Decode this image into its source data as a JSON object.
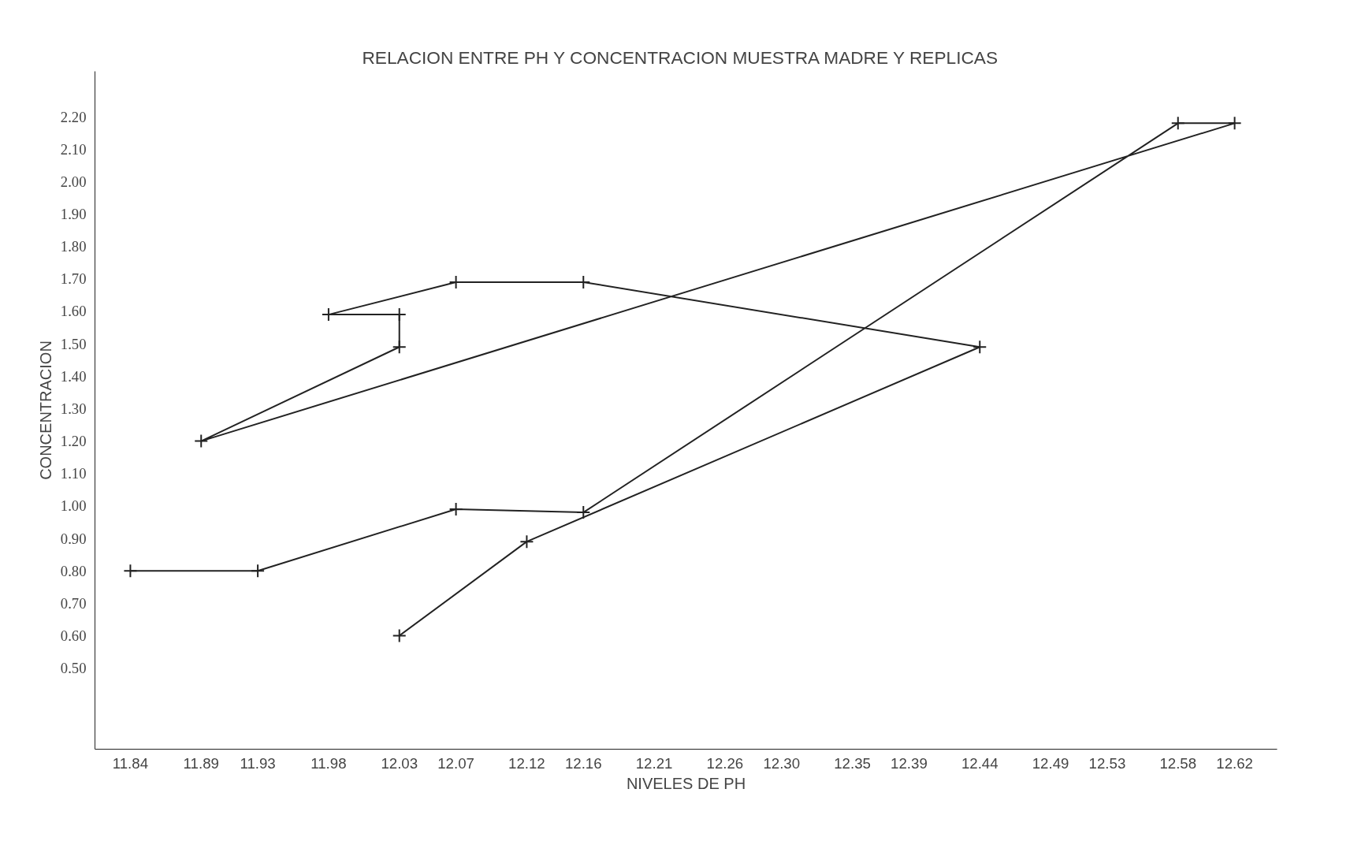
{
  "chart_data": {
    "type": "line",
    "title": "RELACION  ENTRE PH Y CONCENTRACION MUESTRA  MADRE Y REPLICAS",
    "xlabel": "NIVELES DE PH",
    "ylabel": "CONCENTRACION",
    "x": [
      11.84,
      11.93,
      12.07,
      12.16,
      12.58,
      12.62,
      11.89,
      12.03,
      12.03,
      11.98,
      12.07,
      12.16,
      12.44,
      12.12,
      12.03
    ],
    "series": [
      {
        "color": "#222222",
        "values": [
          0.8,
          0.8,
          0.99,
          0.98,
          2.18,
          2.18,
          1.2,
          1.49,
          1.59,
          1.59,
          1.69,
          1.69,
          1.49,
          0.89,
          0.6
        ]
      }
    ],
    "xlim": [
      11.815,
      12.65
    ],
    "xticks": [
      11.84,
      11.89,
      11.93,
      11.98,
      12.03,
      12.07,
      12.12,
      12.16,
      12.21,
      12.26,
      {
        "value": 12.3,
        "label": "12.30"
      },
      12.35,
      12.39,
      12.44,
      12.49,
      12.53,
      12.58,
      12.62
    ],
    "ylim": [
      0.25,
      2.34
    ],
    "yticks": [
      {
        "value": 0.5,
        "label": "0.50"
      },
      {
        "value": 0.6,
        "label": "0.60"
      },
      {
        "value": 0.7,
        "label": "0.70"
      },
      {
        "value": 0.8,
        "label": "0.80"
      },
      {
        "value": 0.9,
        "label": "0.90"
      },
      {
        "value": 1.0,
        "label": "1.00"
      },
      {
        "value": 1.1,
        "label": "1.10"
      },
      {
        "value": 1.2,
        "label": "1.20"
      },
      {
        "value": 1.3,
        "label": "1.30"
      },
      {
        "value": 1.4,
        "label": "1.40"
      },
      {
        "value": 1.5,
        "label": "1.50"
      },
      {
        "value": 1.6,
        "label": "1.60"
      },
      {
        "value": 1.7,
        "label": "1.70"
      },
      {
        "value": 1.8,
        "label": "1.80"
      },
      {
        "value": 1.9,
        "label": "1.90"
      },
      {
        "value": 2.0,
        "label": "2.00"
      },
      {
        "value": 2.1,
        "label": "2.10"
      },
      {
        "value": 2.2,
        "label": "2.20"
      }
    ],
    "grid": false,
    "marker": "cross",
    "line_style": "solid"
  }
}
